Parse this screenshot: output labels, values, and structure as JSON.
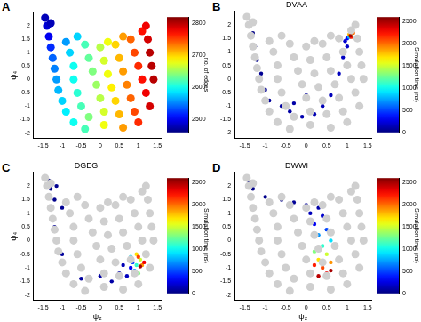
{
  "chart_data": [
    {
      "type": "scatter",
      "label": "A",
      "y_label": "ψ₄",
      "xlim": [
        -1.75,
        1.6
      ],
      "xticks": [
        -1.5,
        -1,
        -0.5,
        0,
        0.5,
        1,
        1.5
      ],
      "ylim": [
        -2.2,
        2.5
      ],
      "yticks": [
        -2,
        -1.5,
        -1,
        -0.5,
        0,
        0.5,
        1,
        1.5,
        2
      ],
      "series": [
        {
          "x": [
            -1.45,
            -1.4,
            -1.35,
            -1.3,
            -1.25,
            -1.2,
            -1.15,
            -1.1,
            -1.0,
            -0.9,
            -0.7,
            -0.4,
            -0.9,
            -0.8,
            -0.7,
            -0.7,
            -0.6,
            -0.5,
            -0.3,
            -0.4,
            -0.3,
            -0.2,
            -0.1,
            0.0,
            0.1,
            0.1,
            0.0,
            0.1,
            0.2,
            0.3,
            0.4,
            0.5,
            0.6,
            0.4,
            0.5,
            0.6,
            0.7,
            0.8,
            0.9,
            1.0,
            0.8,
            0.9,
            1.0,
            1.1,
            1.2,
            1.3,
            1.1,
            1.25,
            1.3,
            1.35,
            1.4,
            -1.3,
            -0.6,
            0.2,
            0.6,
            1.2
          ],
          "y": [
            2.3,
            2.0,
            1.6,
            1.2,
            0.8,
            0.4,
            0.0,
            -0.4,
            -0.8,
            -1.2,
            -1.6,
            -1.85,
            1.4,
            1.0,
            0.5,
            0.0,
            -0.5,
            -1.0,
            -1.4,
            1.3,
            0.8,
            0.3,
            -0.2,
            -0.7,
            -1.2,
            -1.7,
            1.2,
            0.7,
            0.2,
            -0.3,
            -0.8,
            -1.3,
            -1.8,
            1.3,
            0.8,
            0.3,
            -0.2,
            -0.7,
            -1.2,
            -1.6,
            1.5,
            1.0,
            0.5,
            0.0,
            -0.5,
            -1.0,
            1.8,
            1.5,
            1.0,
            0.5,
            0.0,
            2.1,
            1.6,
            1.4,
            1.6,
            2.0
          ],
          "color_values": [
            2480,
            2490,
            2500,
            2520,
            2540,
            2550,
            2560,
            2570,
            2580,
            2590,
            2600,
            2620,
            2560,
            2580,
            2600,
            2600,
            2610,
            2620,
            2640,
            2620,
            2630,
            2640,
            2650,
            2660,
            2670,
            2680,
            2660,
            2670,
            2680,
            2690,
            2700,
            2710,
            2720,
            2700,
            2710,
            2720,
            2730,
            2740,
            2750,
            2760,
            2740,
            2750,
            2760,
            2770,
            2780,
            2790,
            2770,
            2790,
            2800,
            2800,
            2800,
            2480,
            2580,
            2680,
            2720,
            2780
          ]
        }
      ],
      "colorbar": {
        "title": "no. of edges",
        "lim": [
          2460,
          2820
        ],
        "ticks": [
          2500,
          2600,
          2700,
          2800
        ]
      }
    },
    {
      "type": "scatter",
      "label": "B",
      "title": "DVAA",
      "xlim": [
        -1.75,
        1.6
      ],
      "xticks": [
        -1.5,
        -1,
        -0.5,
        0,
        0.5,
        1,
        1.5
      ],
      "ylim": [
        -2.2,
        2.5
      ],
      "yticks": [
        -2,
        -1.5,
        -1,
        -0.5,
        0,
        0.5,
        1,
        1.5,
        2
      ],
      "series": [
        {
          "x": [
            -1.35,
            -1.3,
            -1.25,
            -1.2,
            -1.1,
            -1.0,
            -0.9,
            -0.6,
            -0.4,
            -0.3,
            0.0,
            -0.1,
            0.2,
            0.4,
            0.6,
            0.8,
            0.9,
            1.0,
            0.95,
            1.0,
            1.05,
            1.1,
            1.05,
            1.15,
            1.1,
            1.08
          ],
          "y": [
            2.1,
            1.7,
            1.2,
            0.7,
            0.2,
            -0.4,
            -0.8,
            -1.0,
            -1.2,
            -0.9,
            -0.6,
            -1.4,
            -1.3,
            -1.0,
            -0.6,
            0.2,
            0.8,
            1.2,
            1.4,
            1.5,
            1.55,
            1.6,
            1.65,
            1.7,
            1.55,
            1.6
          ],
          "color_values": [
            10,
            20,
            30,
            40,
            50,
            60,
            70,
            80,
            90,
            100,
            110,
            120,
            130,
            140,
            150,
            160,
            170,
            180,
            200,
            300,
            800,
            1300,
            1800,
            2000,
            2200,
            2500
          ]
        }
      ],
      "colorbar": {
        "title": "Simulation time (ns)",
        "lim": [
          0,
          2600
        ],
        "ticks": [
          0,
          500,
          1000,
          1500,
          2000,
          2500
        ]
      }
    },
    {
      "type": "scatter",
      "label": "C",
      "title": "DGEG",
      "x_label": "ψ₂",
      "y_label": "ψ₄",
      "xlim": [
        -1.75,
        1.6
      ],
      "xticks": [
        -1.5,
        -1,
        -0.5,
        0,
        0.5,
        1,
        1.5
      ],
      "ylim": [
        -2.2,
        2.5
      ],
      "yticks": [
        -2,
        -1.5,
        -1,
        -0.5,
        0,
        0.5,
        1,
        1.5,
        2
      ],
      "series": [
        {
          "x": [
            -1.35,
            -1.3,
            -1.2,
            -1.15,
            -1.0,
            -1.2,
            -1.0,
            -0.5,
            0.0,
            0.3,
            0.5,
            0.6,
            0.7,
            0.8,
            0.85,
            0.9,
            0.8,
            0.95,
            1.0,
            1.05,
            0.95,
            1.1,
            1.0,
            1.15,
            1.05
          ],
          "y": [
            2.2,
            1.9,
            1.5,
            2.0,
            1.2,
            0.5,
            -0.5,
            -1.4,
            -1.3,
            -1.5,
            -1.2,
            -0.9,
            -1.3,
            -1.0,
            -0.8,
            -1.1,
            -0.6,
            -0.9,
            -1.2,
            -0.7,
            -0.5,
            -0.9,
            -0.6,
            -0.8,
            -0.95
          ],
          "color_values": [
            10,
            20,
            30,
            40,
            50,
            60,
            70,
            80,
            90,
            100,
            120,
            140,
            160,
            300,
            500,
            700,
            900,
            1100,
            1300,
            1500,
            1700,
            1900,
            2100,
            2300,
            2500
          ]
        }
      ],
      "colorbar": {
        "title": "Simulation time (ns)",
        "lim": [
          0,
          2600
        ],
        "ticks": [
          0,
          500,
          1000,
          1500,
          2000,
          2500
        ]
      }
    },
    {
      "type": "scatter",
      "label": "D",
      "title": "DWWI",
      "x_label": "ψ₂",
      "xlim": [
        -1.75,
        1.6
      ],
      "xticks": [
        -1.5,
        -1,
        -0.5,
        0,
        0.5,
        1,
        1.5
      ],
      "ylim": [
        -2.2,
        2.5
      ],
      "yticks": [
        -2,
        -1.5,
        -1,
        -0.5,
        0,
        0.5,
        1,
        1.5,
        2
      ],
      "series": [
        {
          "x": [
            -1.4,
            -1.3,
            -1.0,
            -0.6,
            -0.3,
            0.0,
            0.3,
            0.1,
            0.4,
            0.2,
            0.5,
            0.3,
            0.6,
            0.4,
            0.2,
            0.5,
            0.3,
            0.6,
            0.4,
            0.2,
            0.5,
            0.3,
            0.6
          ],
          "y": [
            2.2,
            1.9,
            1.6,
            1.5,
            1.4,
            1.3,
            1.2,
            1.0,
            0.9,
            0.6,
            0.4,
            0.2,
            0.0,
            -0.2,
            -0.4,
            -0.5,
            -0.7,
            -0.8,
            -1.0,
            -0.9,
            -1.2,
            -1.3,
            -1.1
          ],
          "color_values": [
            10,
            20,
            30,
            40,
            60,
            80,
            100,
            150,
            200,
            300,
            500,
            700,
            900,
            1100,
            1300,
            1500,
            1700,
            1900,
            2100,
            2200,
            2300,
            2450,
            2500
          ]
        }
      ],
      "colorbar": {
        "title": "Simulation time (ns)",
        "lim": [
          0,
          2600
        ],
        "ticks": [
          0,
          500,
          1000,
          1500,
          2000,
          2500
        ]
      }
    }
  ]
}
